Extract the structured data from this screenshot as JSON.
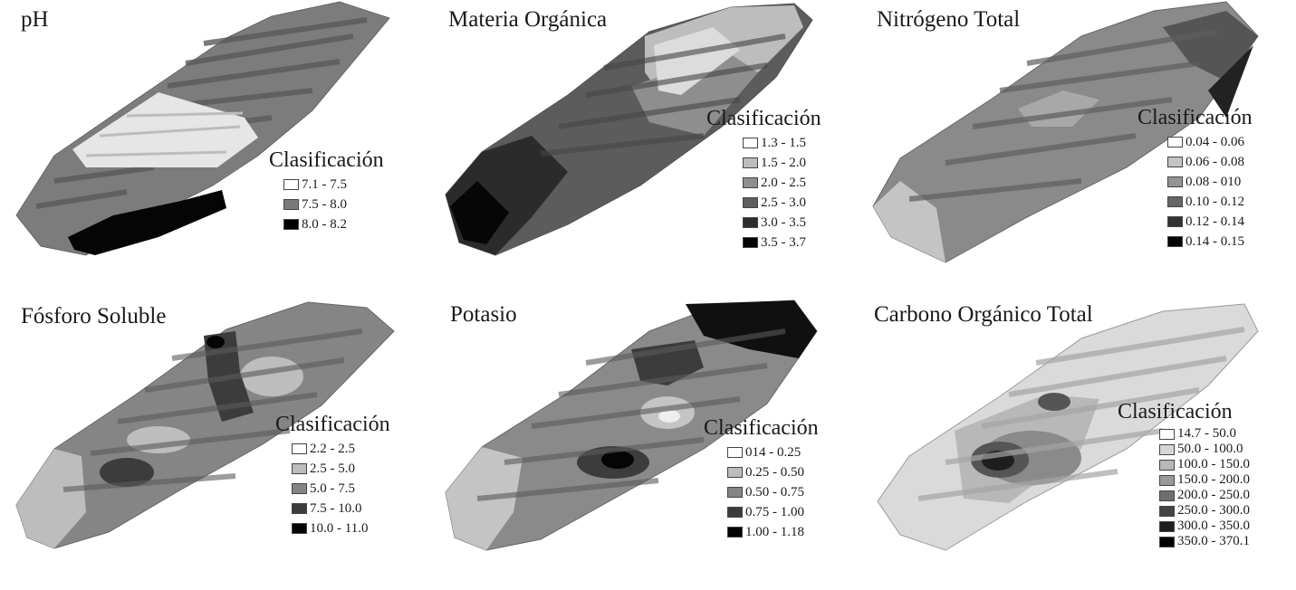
{
  "panels": [
    {
      "title": "pH",
      "legend": {
        "title": "Clasificación",
        "items": [
          {
            "label": "7.1 - 7.5",
            "color": "#ffffff"
          },
          {
            "label": "7.5 - 8.0",
            "color": "#7a7a7a"
          },
          {
            "label": "8.0 - 8.2",
            "color": "#000000"
          }
        ]
      }
    },
    {
      "title": "Materia Orgánica",
      "legend": {
        "title": "Clasificación",
        "items": [
          {
            "label": "1.3 - 1.5",
            "color": "#ffffff"
          },
          {
            "label": "1.5 - 2.0",
            "color": "#bdbdbd"
          },
          {
            "label": "2.0 - 2.5",
            "color": "#8e8e8e"
          },
          {
            "label": "2.5 - 3.0",
            "color": "#5e5e5e"
          },
          {
            "label": "3.0 - 3.5",
            "color": "#2e2e2e"
          },
          {
            "label": "3.5 - 3.7",
            "color": "#050505"
          }
        ]
      }
    },
    {
      "title": "Nitrógeno Total",
      "legend": {
        "title": "Clasificación",
        "items": [
          {
            "label": "0.04 - 0.06",
            "color": "#ffffff"
          },
          {
            "label": "0.06 - 0.08",
            "color": "#c4c4c4"
          },
          {
            "label": "0.08 - 010",
            "color": "#949494"
          },
          {
            "label": "0.10 - 0.12",
            "color": "#666666"
          },
          {
            "label": "0.12 - 0.14",
            "color": "#333333"
          },
          {
            "label": "0.14 - 0.15",
            "color": "#050505"
          }
        ]
      }
    },
    {
      "title": "Fósforo Soluble",
      "legend": {
        "title": "Clasificación",
        "items": [
          {
            "label": "2.2 - 2.5",
            "color": "#ffffff"
          },
          {
            "label": "2.5 - 5.0",
            "color": "#bdbdbd"
          },
          {
            "label": "5.0 - 7.5",
            "color": "#858585"
          },
          {
            "label": "7.5 - 10.0",
            "color": "#3c3c3c"
          },
          {
            "label": "10.0 - 11.0",
            "color": "#050505"
          }
        ]
      }
    },
    {
      "title": "Potasio",
      "legend": {
        "title": "Clasificación",
        "items": [
          {
            "label": "014 - 0.25",
            "color": "#ffffff"
          },
          {
            "label": "0.25 - 0.50",
            "color": "#bdbdbd"
          },
          {
            "label": "0.50 - 0.75",
            "color": "#858585"
          },
          {
            "label": "0.75 - 1.00",
            "color": "#3c3c3c"
          },
          {
            "label": "1.00 - 1.18",
            "color": "#050505"
          }
        ]
      }
    },
    {
      "title": "Carbono Orgánico Total",
      "legend": {
        "title": "Clasificación",
        "items": [
          {
            "label": "14.7 - 50.0",
            "color": "#ffffff"
          },
          {
            "label": "50.0 - 100.0",
            "color": "#d6d6d6"
          },
          {
            "label": "100.0 - 150.0",
            "color": "#b8b8b8"
          },
          {
            "label": "150.0 - 200.0",
            "color": "#9a9a9a"
          },
          {
            "label": "200.0 - 250.0",
            "color": "#6e6e6e"
          },
          {
            "label": "250.0 - 300.0",
            "color": "#444444"
          },
          {
            "label": "300.0 - 350.0",
            "color": "#1e1e1e"
          },
          {
            "label": "350.0 - 370.1",
            "color": "#000000"
          }
        ]
      }
    }
  ]
}
